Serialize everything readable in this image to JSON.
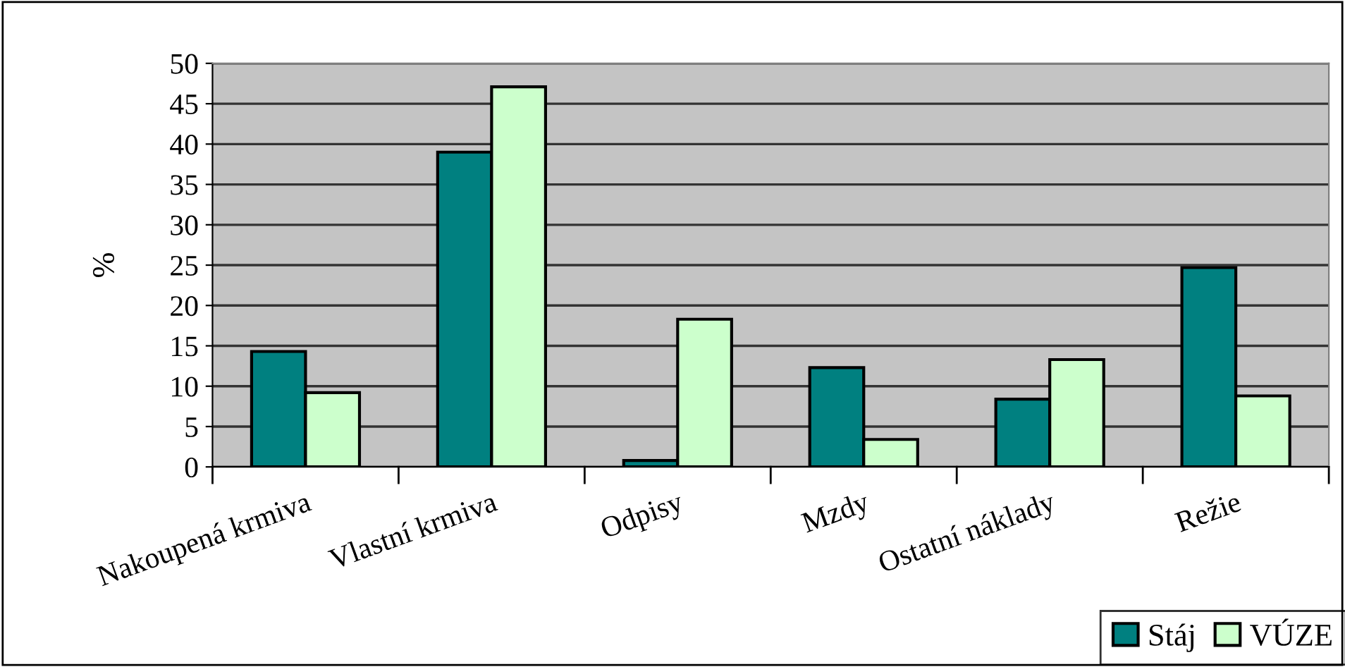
{
  "chart_data": {
    "type": "bar",
    "ylabel": "%",
    "categories": [
      "Nakoupená krmiva",
      "Vlastní krmiva",
      "Odpisy",
      "Mzdy",
      "Ostatní náklady",
      "Režie"
    ],
    "series": [
      {
        "name": "Stáj",
        "color": "#008080",
        "values": [
          14.3,
          39.0,
          0.8,
          12.3,
          8.4,
          24.7
        ]
      },
      {
        "name": "VÚZE",
        "color": "#ccffcc",
        "values": [
          9.2,
          47.1,
          18.3,
          3.4,
          13.3,
          8.8
        ]
      }
    ],
    "ylim": [
      0,
      50
    ],
    "yticks": [
      0,
      5,
      10,
      15,
      20,
      25,
      30,
      35,
      40,
      45,
      50
    ],
    "grid": "y",
    "legend": "bottom right"
  }
}
